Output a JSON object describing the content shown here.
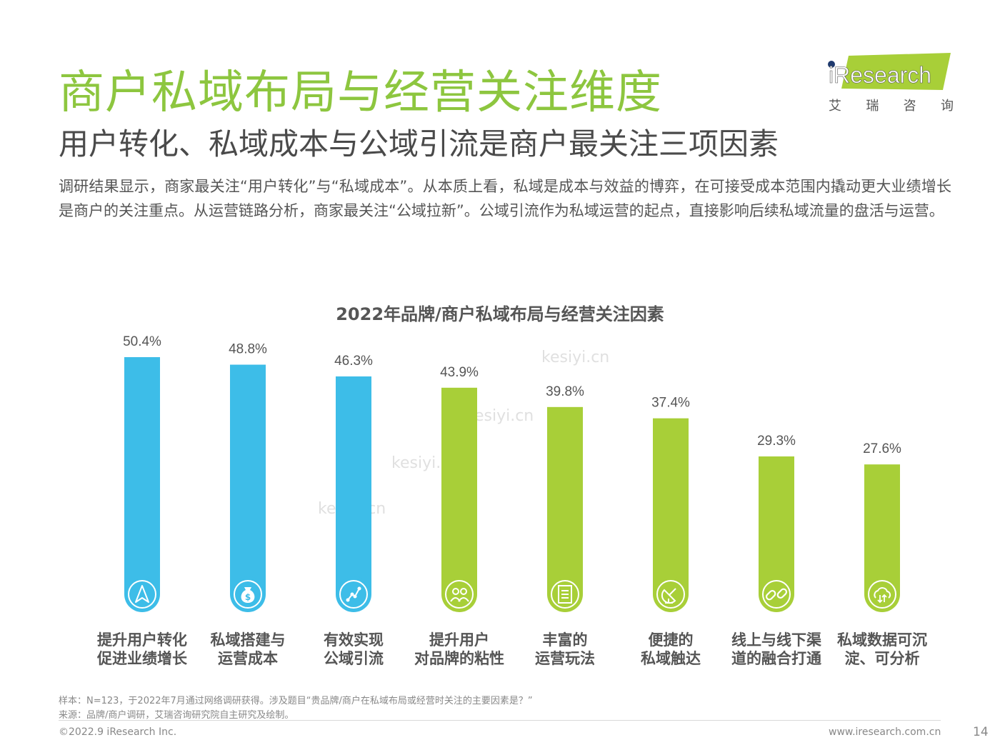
{
  "header": {
    "title": "商户私域布局与经营关注维度",
    "subtitle": "用户转化、私域成本与公域引流是商户最关注三项因素",
    "body": "调研结果显示，商家最关注“用户转化”与“私域成本”。从本质上看，私域是成本与效益的博弈，在可接受成本范围内撬动更大业绩增长是商户的关注重点。从运营链路分析，商家最关注“公域拉新”。公域引流作为私域运营的起点，直接影响后续私域流量的盘活与运营。"
  },
  "logo": {
    "text": "iResearch",
    "chars": [
      "艾",
      "瑞",
      "咨",
      "询"
    ]
  },
  "watermark": "kesiyi.cn",
  "chart_data": {
    "type": "bar",
    "title": "2022年品牌/商户私域布局与经营关注因素",
    "categories": [
      [
        "提升用户转化",
        "促进业绩增长"
      ],
      [
        "私域搭建与",
        "运营成本"
      ],
      [
        "有效实现",
        "公域引流"
      ],
      [
        "提升用户",
        "对品牌的粘性"
      ],
      [
        "丰富的",
        "运营玩法"
      ],
      [
        "便捷的",
        "私域触达"
      ],
      [
        "线上与线下渠",
        "道的融合打通"
      ],
      [
        "私域数据可沉",
        "淀、可分析"
      ]
    ],
    "values": [
      50.4,
      48.8,
      46.3,
      43.9,
      39.8,
      37.4,
      29.3,
      27.6
    ],
    "value_labels": [
      "50.4%",
      "48.8%",
      "46.3%",
      "43.9%",
      "39.8%",
      "37.4%",
      "29.3%",
      "27.6%"
    ],
    "icons": [
      "navigation-arrow-icon",
      "money-bag-icon",
      "link-nodes-icon",
      "users-icon",
      "document-icon",
      "satellite-dish-icon",
      "chain-link-icon",
      "cloud-sync-icon"
    ],
    "bar_colors": [
      "#3dbde8",
      "#3dbde8",
      "#3dbde8",
      "#a8cf38",
      "#a8cf38",
      "#a8cf38",
      "#a8cf38",
      "#a8cf38"
    ],
    "ylim": [
      0,
      50.4
    ],
    "grid": false,
    "legend": "none"
  },
  "colors": {
    "title": "#8dc63f",
    "blue": "#3dbde8",
    "green": "#a8cf38"
  },
  "notes": {
    "sample": "样本：N=123，于2022年7月通过网络调研获得。涉及题目“贵品牌/商户在私域布局或经营时关注的主要因素是？”",
    "source": "来源：品牌/商户调研，艾瑞咨询研究院自主研究及绘制。"
  },
  "footer": {
    "copyright": "©2022.9 iResearch Inc.",
    "website": "www.iresearch.com.cn",
    "page": "14"
  }
}
